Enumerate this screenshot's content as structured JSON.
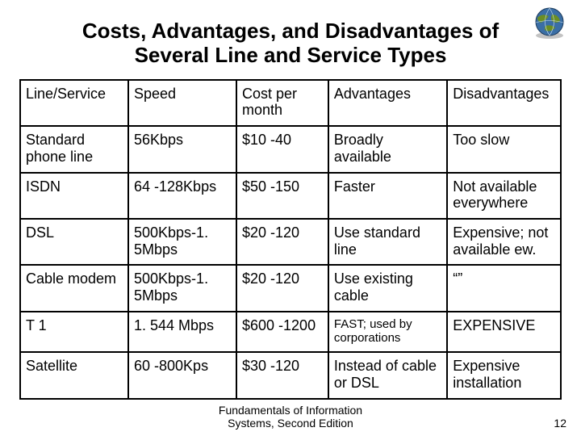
{
  "title": "Costs, Advantages, and Disadvantages of Several Line and Service Types",
  "table": {
    "columns": [
      "Line/Service",
      "Speed",
      "Cost per month",
      "Advantages",
      "Disadvantages"
    ],
    "rows": [
      {
        "line": "Standard phone line",
        "speed": "56Kbps",
        "cost": "$10 -40",
        "adv": "Broadly available",
        "dis": "Too slow",
        "adv_small": false
      },
      {
        "line": "ISDN",
        "speed": "64 -128Kbps",
        "cost": "$50 -150",
        "adv": "Faster",
        "dis": "Not available everywhere",
        "adv_small": false
      },
      {
        "line": "DSL",
        "speed": "500Kbps-1. 5Mbps",
        "cost": "$20 -120",
        "adv": "Use standard line",
        "dis": "Expensive; not available ew.",
        "adv_small": false
      },
      {
        "line": "Cable modem",
        "speed": "500Kbps-1. 5Mbps",
        "cost": "$20 -120",
        "adv": "Use existing cable",
        "dis": "“”",
        "adv_small": false
      },
      {
        "line": "T 1",
        "speed": "1. 544 Mbps",
        "cost": "$600 -1200",
        "adv": "FAST; used by corporations",
        "dis": "EXPENSIVE",
        "adv_small": true
      },
      {
        "line": "Satellite",
        "speed": "60 -800Kps",
        "cost": "$30 -120",
        "adv": "Instead of cable or DSL",
        "dis": "Expensive installation",
        "adv_small": false
      }
    ],
    "col_widths_pct": [
      20,
      20,
      17,
      22,
      21
    ],
    "border_color": "#000000",
    "font_size_pt": 18,
    "header_font_size_pt": 18
  },
  "footer_line1": "Fundamentals of Information",
  "footer_line2": "Systems, Second Edition",
  "page_number": "12",
  "colors": {
    "background": "#ffffff",
    "text": "#000000",
    "globe_ocean": "#3a6ea5",
    "globe_land": "#6b8e23",
    "globe_shadow": "#888888"
  }
}
